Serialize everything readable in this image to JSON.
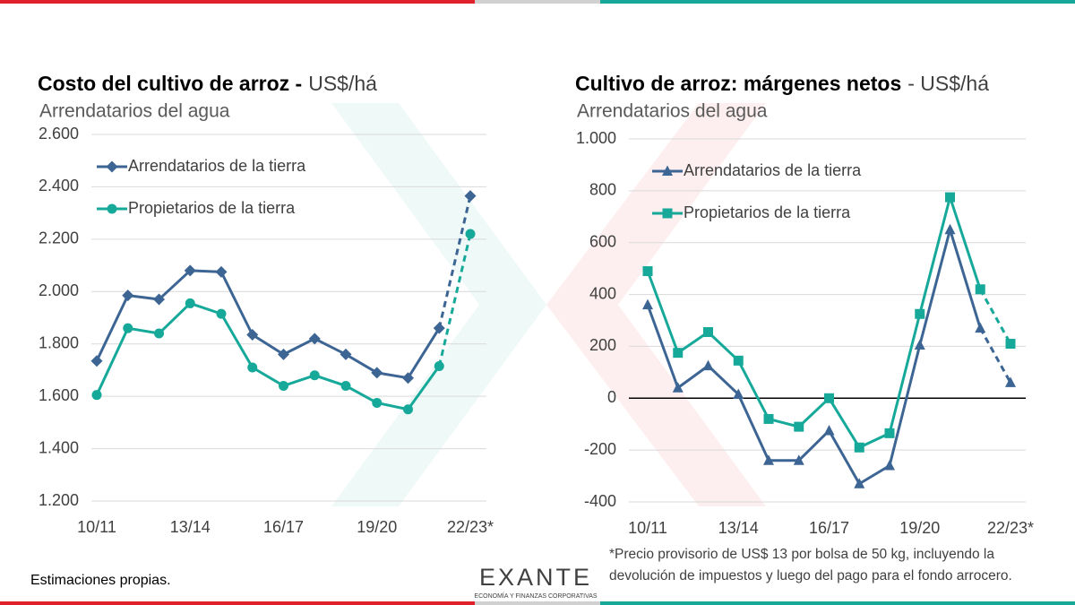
{
  "chart_data": [
    {
      "type": "line",
      "title": "Costo del cultivo de arroz -",
      "title_unit": "US$/há",
      "subtitle": "Arrendatarios del agua",
      "categories": [
        "10/11",
        null,
        null,
        "13/14",
        null,
        null,
        "16/17",
        null,
        null,
        "19/20",
        null,
        null,
        "22/23*"
      ],
      "series": [
        {
          "name": "Arrendatarios de la tierra",
          "color": "#3d6594",
          "marker": "diamond",
          "dashed_last_segment": true,
          "values": [
            1735,
            1985,
            1970,
            2080,
            2075,
            1835,
            1760,
            1820,
            1760,
            1690,
            1670,
            1860,
            2365
          ]
        },
        {
          "name": "Propietarios de la tierra",
          "color": "#16a99a",
          "marker": "circle",
          "dashed_last_segment": true,
          "values": [
            1605,
            1860,
            1840,
            1955,
            1915,
            1710,
            1640,
            1680,
            1640,
            1575,
            1550,
            1715,
            2220
          ]
        }
      ],
      "ylim": [
        1200,
        2600
      ],
      "yticks": [
        {
          "value": 1200,
          "label": "1.200"
        },
        {
          "value": 1400,
          "label": "1.400"
        },
        {
          "value": 1600,
          "label": "1.600"
        },
        {
          "value": 1800,
          "label": "1.800"
        },
        {
          "value": 2000,
          "label": "2.000"
        },
        {
          "value": 2200,
          "label": "2.200"
        },
        {
          "value": 2400,
          "label": "2.400"
        },
        {
          "value": 2600,
          "label": "2.600"
        }
      ],
      "grid": true,
      "zero_line": false,
      "legend": "upper left"
    },
    {
      "type": "line",
      "title": "Cultivo de arroz: márgenes netos",
      "title_unit": "- US$/há",
      "subtitle": "Arrendatarios del agua",
      "categories": [
        "10/11",
        null,
        null,
        "13/14",
        null,
        null,
        "16/17",
        null,
        null,
        "19/20",
        null,
        null,
        "22/23*"
      ],
      "series": [
        {
          "name": "Arrendatarios de la tierra",
          "color": "#3d6594",
          "marker": "triangle",
          "dashed_last_segment": true,
          "values": [
            360,
            40,
            125,
            15,
            -240,
            -240,
            -125,
            -330,
            -260,
            205,
            650,
            270,
            60
          ]
        },
        {
          "name": "Propietarios de la tierra",
          "color": "#16a99a",
          "marker": "square",
          "dashed_last_segment": true,
          "values": [
            490,
            175,
            255,
            145,
            -80,
            -110,
            0,
            -190,
            -135,
            325,
            775,
            420,
            210
          ]
        }
      ],
      "ylim": [
        -400,
        1000
      ],
      "yticks": [
        -400,
        -200,
        0,
        200,
        400,
        600,
        800,
        {
          "value": 1000,
          "label": "1.000"
        }
      ],
      "grid": true,
      "zero_line": true,
      "legend": "upper left",
      "note_lines": [
        "*Precio provisorio de US$ 13 por bolsa de 50 kg, incluyendo la",
        "devolución de impuestos y luego del pago para el fondo arrocero."
      ]
    }
  ],
  "footer": {
    "note": "Estimaciones propias.",
    "logo": "EXANTE",
    "logo_tagline": "ECONOMÍA Y FINANZAS CORPORATIVAS"
  }
}
